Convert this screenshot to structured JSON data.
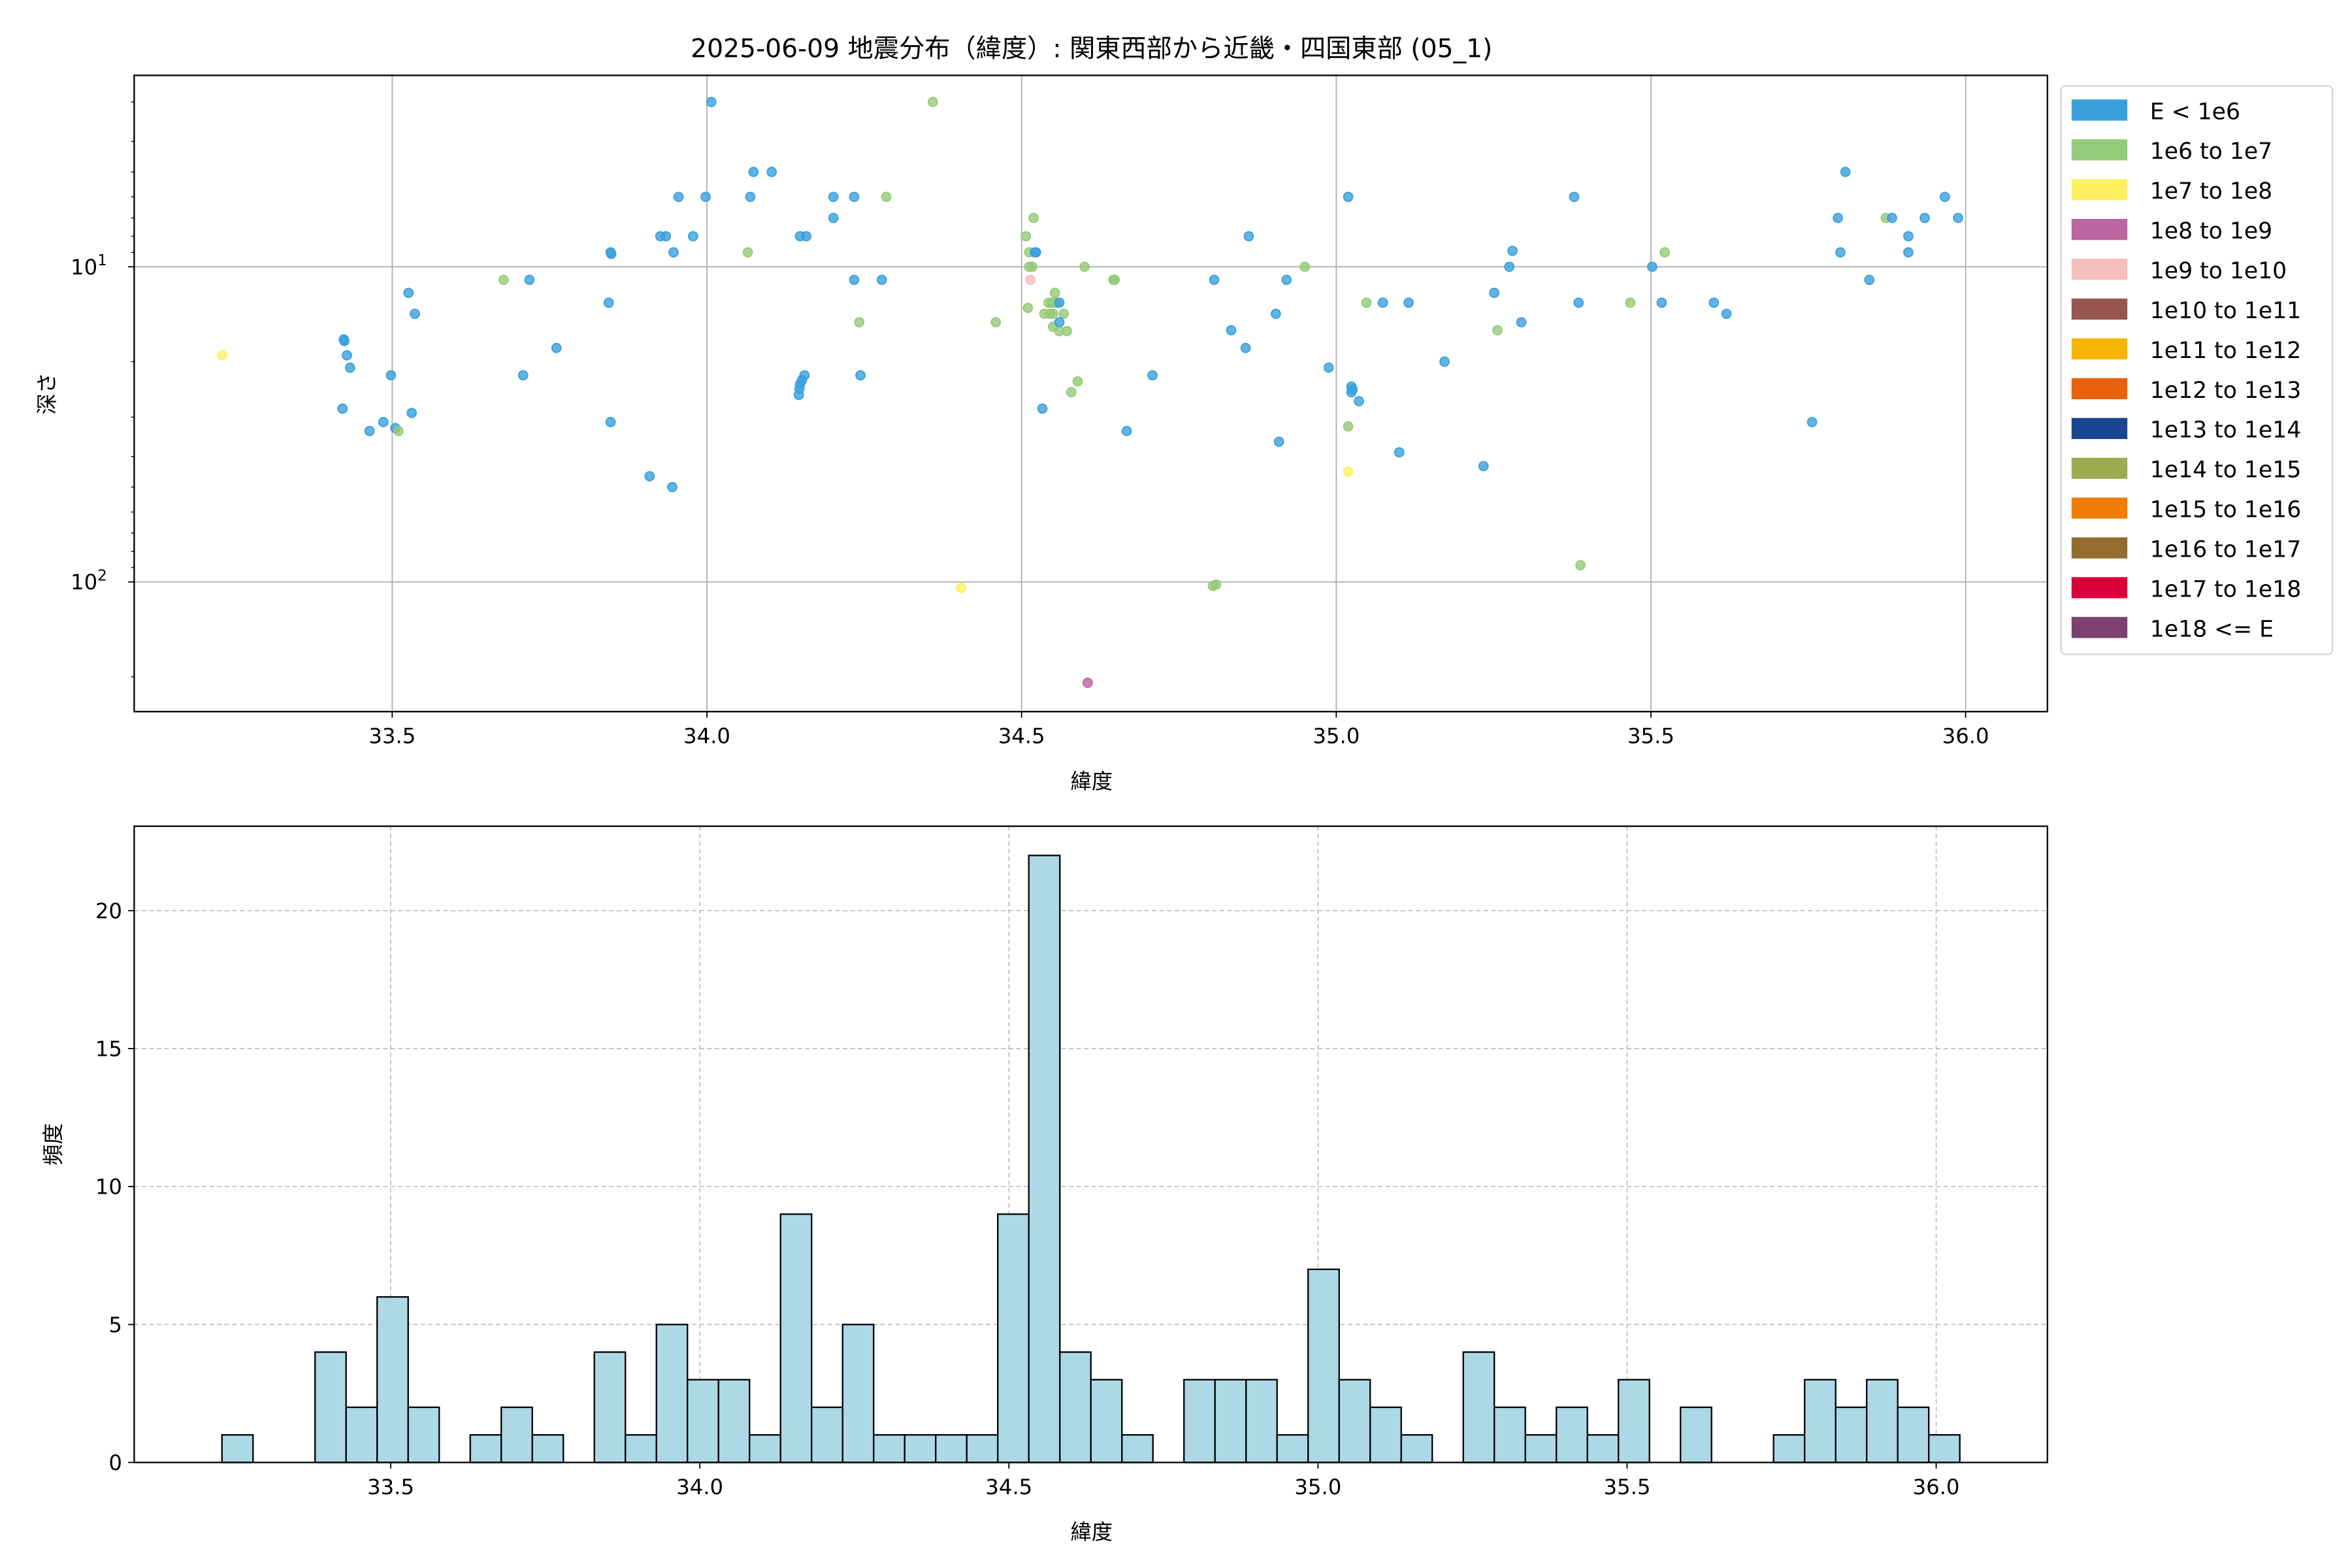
{
  "title": "2025-06-09 地震分布（緯度）: 関東西部から近畿・四国東部 (05_1)",
  "chart_data": [
    {
      "type": "scatter",
      "xlabel": "緯度",
      "ylabel": "深さ",
      "xlim": [
        33.09,
        36.13
      ],
      "ylim": [
        258,
        2.47
      ],
      "yscale": "log",
      "y_inverted": true,
      "grid": true,
      "x_ticks": [
        "33.5",
        "34.0",
        "34.5",
        "35.0",
        "35.5",
        "36.0"
      ],
      "x_tick_values": [
        33.5,
        34.0,
        34.5,
        35.0,
        35.5,
        36.0
      ],
      "y_ticks": [
        {
          "base": "10",
          "exp": "1",
          "value": 10
        },
        {
          "base": "10",
          "exp": "2",
          "value": 100
        }
      ],
      "legend_placement": "outside-right",
      "legend": [
        {
          "label": "E < 1e6",
          "color": "#3aa0dc"
        },
        {
          "label": "1e6 to 1e7",
          "color": "#93cb78"
        },
        {
          "label": "1e7 to 1e8",
          "color": "#fef160"
        },
        {
          "label": "1e8 to 1e9",
          "color": "#ba64a0"
        },
        {
          "label": "1e9 to 1e10",
          "color": "#f5c0bc"
        },
        {
          "label": "1e10 to 1e11",
          "color": "#975550"
        },
        {
          "label": "1e11 to 1e12",
          "color": "#f6b500"
        },
        {
          "label": "1e12 to 1e13",
          "color": "#e9610c"
        },
        {
          "label": "1e13 to 1e14",
          "color": "#1a4690"
        },
        {
          "label": "1e14 to 1e15",
          "color": "#9bad4f"
        },
        {
          "label": "1e15 to 1e16",
          "color": "#ef7c06"
        },
        {
          "label": "1e16 to 1e17",
          "color": "#946c2d"
        },
        {
          "label": "1e17 to 1e18",
          "color": "#d9003a"
        },
        {
          "label": "1e18 <= E",
          "color": "#7b406f"
        }
      ],
      "points": [
        {
          "lat": 33.23,
          "depth": 19.1,
          "cls": 2
        },
        {
          "lat": 33.423,
          "depth": 17.0,
          "cls": 0
        },
        {
          "lat": 33.424,
          "depth": 17.2,
          "cls": 0
        },
        {
          "lat": 33.428,
          "depth": 19.1,
          "cls": 0
        },
        {
          "lat": 33.433,
          "depth": 20.9,
          "cls": 0
        },
        {
          "lat": 33.498,
          "depth": 22.1,
          "cls": 0
        },
        {
          "lat": 33.421,
          "depth": 28.2,
          "cls": 0
        },
        {
          "lat": 33.464,
          "depth": 33.2,
          "cls": 0
        },
        {
          "lat": 33.486,
          "depth": 31.1,
          "cls": 0
        },
        {
          "lat": 33.505,
          "depth": 32.5,
          "cls": 0
        },
        {
          "lat": 33.51,
          "depth": 33.2,
          "cls": 1
        },
        {
          "lat": 33.531,
          "depth": 29.1,
          "cls": 0
        },
        {
          "lat": 33.526,
          "depth": 12.1,
          "cls": 0
        },
        {
          "lat": 33.536,
          "depth": 14.1,
          "cls": 0
        },
        {
          "lat": 33.677,
          "depth": 11.0,
          "cls": 1
        },
        {
          "lat": 33.718,
          "depth": 11.0,
          "cls": 0
        },
        {
          "lat": 33.708,
          "depth": 22.1,
          "cls": 0
        },
        {
          "lat": 33.761,
          "depth": 18.1,
          "cls": 0
        },
        {
          "lat": 33.847,
          "depth": 9.0,
          "cls": 0
        },
        {
          "lat": 33.848,
          "depth": 9.1,
          "cls": 0
        },
        {
          "lat": 33.844,
          "depth": 13.0,
          "cls": 0
        },
        {
          "lat": 33.847,
          "depth": 31.1,
          "cls": 0
        },
        {
          "lat": 33.909,
          "depth": 46.2,
          "cls": 0
        },
        {
          "lat": 33.945,
          "depth": 50.0,
          "cls": 0
        },
        {
          "lat": 33.926,
          "depth": 8.0,
          "cls": 0
        },
        {
          "lat": 33.935,
          "depth": 8.0,
          "cls": 0
        },
        {
          "lat": 33.947,
          "depth": 9.0,
          "cls": 0
        },
        {
          "lat": 33.955,
          "depth": 6.0,
          "cls": 0
        },
        {
          "lat": 33.978,
          "depth": 8.0,
          "cls": 0
        },
        {
          "lat": 33.998,
          "depth": 6.0,
          "cls": 0
        },
        {
          "lat": 34.007,
          "depth": 3.0,
          "cls": 0
        },
        {
          "lat": 34.065,
          "depth": 9.0,
          "cls": 1
        },
        {
          "lat": 34.069,
          "depth": 6.0,
          "cls": 0
        },
        {
          "lat": 34.074,
          "depth": 5.0,
          "cls": 0
        },
        {
          "lat": 34.103,
          "depth": 5.0,
          "cls": 0
        },
        {
          "lat": 34.148,
          "depth": 8.0,
          "cls": 0
        },
        {
          "lat": 34.158,
          "depth": 8.0,
          "cls": 0
        },
        {
          "lat": 34.146,
          "depth": 25.5,
          "cls": 0
        },
        {
          "lat": 34.147,
          "depth": 24.4,
          "cls": 0
        },
        {
          "lat": 34.148,
          "depth": 23.6,
          "cls": 0
        },
        {
          "lat": 34.151,
          "depth": 22.9,
          "cls": 0
        },
        {
          "lat": 34.155,
          "depth": 22.1,
          "cls": 0
        },
        {
          "lat": 34.201,
          "depth": 6.0,
          "cls": 0
        },
        {
          "lat": 34.201,
          "depth": 7.0,
          "cls": 0
        },
        {
          "lat": 34.234,
          "depth": 6.0,
          "cls": 0
        },
        {
          "lat": 34.285,
          "depth": 6.0,
          "cls": 1
        },
        {
          "lat": 34.234,
          "depth": 11.0,
          "cls": 0
        },
        {
          "lat": 34.278,
          "depth": 11.0,
          "cls": 0
        },
        {
          "lat": 34.242,
          "depth": 15.0,
          "cls": 1
        },
        {
          "lat": 34.244,
          "depth": 22.1,
          "cls": 0
        },
        {
          "lat": 34.359,
          "depth": 3.0,
          "cls": 1
        },
        {
          "lat": 34.459,
          "depth": 15.0,
          "cls": 1
        },
        {
          "lat": 34.404,
          "depth": 104.5,
          "cls": 2
        },
        {
          "lat": 34.519,
          "depth": 7.0,
          "cls": 1
        },
        {
          "lat": 34.507,
          "depth": 8.0,
          "cls": 1
        },
        {
          "lat": 34.512,
          "depth": 9.0,
          "cls": 1
        },
        {
          "lat": 34.512,
          "depth": 10.0,
          "cls": 1
        },
        {
          "lat": 34.517,
          "depth": 10.0,
          "cls": 1
        },
        {
          "lat": 34.521,
          "depth": 9.0,
          "cls": 0
        },
        {
          "lat": 34.523,
          "depth": 9.0,
          "cls": 0
        },
        {
          "lat": 34.6,
          "depth": 10.0,
          "cls": 1
        },
        {
          "lat": 34.553,
          "depth": 12.1,
          "cls": 1
        },
        {
          "lat": 34.51,
          "depth": 13.5,
          "cls": 1
        },
        {
          "lat": 34.543,
          "depth": 13.0,
          "cls": 1
        },
        {
          "lat": 34.548,
          "depth": 13.0,
          "cls": 1
        },
        {
          "lat": 34.555,
          "depth": 13.0,
          "cls": 1
        },
        {
          "lat": 34.536,
          "depth": 14.1,
          "cls": 1
        },
        {
          "lat": 34.545,
          "depth": 14.1,
          "cls": 1
        },
        {
          "lat": 34.567,
          "depth": 14.1,
          "cls": 1
        },
        {
          "lat": 34.55,
          "depth": 14.1,
          "cls": 1
        },
        {
          "lat": 34.55,
          "depth": 15.5,
          "cls": 1
        },
        {
          "lat": 34.56,
          "depth": 16.0,
          "cls": 1
        },
        {
          "lat": 34.572,
          "depth": 16.0,
          "cls": 1
        },
        {
          "lat": 34.589,
          "depth": 23.1,
          "cls": 1
        },
        {
          "lat": 34.579,
          "depth": 25.0,
          "cls": 1
        },
        {
          "lat": 34.646,
          "depth": 11.0,
          "cls": 1
        },
        {
          "lat": 34.648,
          "depth": 11.0,
          "cls": 1
        },
        {
          "lat": 34.56,
          "depth": 13.0,
          "cls": 0
        },
        {
          "lat": 34.56,
          "depth": 15.0,
          "cls": 0
        },
        {
          "lat": 34.533,
          "depth": 28.2,
          "cls": 0
        },
        {
          "lat": 34.667,
          "depth": 33.2,
          "cls": 0
        },
        {
          "lat": 34.708,
          "depth": 22.1,
          "cls": 0
        },
        {
          "lat": 34.514,
          "depth": 11.0,
          "cls": 4
        },
        {
          "lat": 34.605,
          "depth": 209,
          "cls": 3
        },
        {
          "lat": 34.806,
          "depth": 11.0,
          "cls": 0
        },
        {
          "lat": 34.861,
          "depth": 8.0,
          "cls": 0
        },
        {
          "lat": 34.921,
          "depth": 11.0,
          "cls": 0
        },
        {
          "lat": 34.904,
          "depth": 14.1,
          "cls": 0
        },
        {
          "lat": 34.833,
          "depth": 15.9,
          "cls": 0
        },
        {
          "lat": 34.856,
          "depth": 18.1,
          "cls": 0
        },
        {
          "lat": 34.909,
          "depth": 35.9,
          "cls": 0
        },
        {
          "lat": 34.95,
          "depth": 10.0,
          "cls": 1
        },
        {
          "lat": 34.988,
          "depth": 20.9,
          "cls": 0
        },
        {
          "lat": 35.019,
          "depth": 6.0,
          "cls": 0
        },
        {
          "lat": 35.024,
          "depth": 24.0,
          "cls": 0
        },
        {
          "lat": 35.024,
          "depth": 25.0,
          "cls": 0
        },
        {
          "lat": 35.026,
          "depth": 24.5,
          "cls": 0
        },
        {
          "lat": 35.036,
          "depth": 26.7,
          "cls": 0
        },
        {
          "lat": 35.019,
          "depth": 32.1,
          "cls": 1
        },
        {
          "lat": 35.019,
          "depth": 44.7,
          "cls": 2
        },
        {
          "lat": 35.048,
          "depth": 13.0,
          "cls": 1
        },
        {
          "lat": 35.074,
          "depth": 13.0,
          "cls": 0
        },
        {
          "lat": 35.115,
          "depth": 13.0,
          "cls": 0
        },
        {
          "lat": 35.1,
          "depth": 38.8,
          "cls": 0
        },
        {
          "lat": 35.172,
          "depth": 20.0,
          "cls": 0
        },
        {
          "lat": 35.234,
          "depth": 42.9,
          "cls": 0
        },
        {
          "lat": 35.251,
          "depth": 12.1,
          "cls": 0
        },
        {
          "lat": 35.256,
          "depth": 15.9,
          "cls": 1
        },
        {
          "lat": 35.275,
          "depth": 10.0,
          "cls": 0
        },
        {
          "lat": 35.28,
          "depth": 8.9,
          "cls": 0
        },
        {
          "lat": 35.294,
          "depth": 15.0,
          "cls": 0
        },
        {
          "lat": 35.378,
          "depth": 6.0,
          "cls": 0
        },
        {
          "lat": 35.385,
          "depth": 13.0,
          "cls": 0
        },
        {
          "lat": 35.388,
          "depth": 88.5,
          "cls": 1
        },
        {
          "lat": 34.804,
          "depth": 103,
          "cls": 1
        },
        {
          "lat": 34.809,
          "depth": 102,
          "cls": 1
        },
        {
          "lat": 35.467,
          "depth": 13.0,
          "cls": 1
        },
        {
          "lat": 35.502,
          "depth": 10.0,
          "cls": 0
        },
        {
          "lat": 35.517,
          "depth": 13.0,
          "cls": 0
        },
        {
          "lat": 35.522,
          "depth": 9.0,
          "cls": 1
        },
        {
          "lat": 35.6,
          "depth": 13.0,
          "cls": 0
        },
        {
          "lat": 35.62,
          "depth": 14.1,
          "cls": 0
        },
        {
          "lat": 35.756,
          "depth": 31.1,
          "cls": 0
        },
        {
          "lat": 35.797,
          "depth": 7.0,
          "cls": 0
        },
        {
          "lat": 35.809,
          "depth": 5.0,
          "cls": 0
        },
        {
          "lat": 35.801,
          "depth": 9.0,
          "cls": 0
        },
        {
          "lat": 35.847,
          "depth": 11.0,
          "cls": 0
        },
        {
          "lat": 35.873,
          "depth": 7.0,
          "cls": 1
        },
        {
          "lat": 35.883,
          "depth": 7.0,
          "cls": 0
        },
        {
          "lat": 35.909,
          "depth": 8.0,
          "cls": 0
        },
        {
          "lat": 35.909,
          "depth": 9.0,
          "cls": 0
        },
        {
          "lat": 35.935,
          "depth": 7.0,
          "cls": 0
        },
        {
          "lat": 35.967,
          "depth": 6.0,
          "cls": 0
        },
        {
          "lat": 35.988,
          "depth": 7.0,
          "cls": 0
        }
      ]
    },
    {
      "type": "bar",
      "subtype": "histogram",
      "xlabel": "緯度",
      "ylabel": "頻度",
      "xlim": [
        33.085,
        36.18
      ],
      "ylim": [
        0,
        23.06
      ],
      "grid": "dashed",
      "bar_color": "#add8e6",
      "edge_color": "#000000",
      "x_ticks": [
        "33.5",
        "34.0",
        "34.5",
        "35.0",
        "35.5",
        "36.0"
      ],
      "x_tick_values": [
        33.5,
        34.0,
        34.5,
        35.0,
        35.5,
        36.0
      ],
      "y_ticks": [
        "0",
        "5",
        "10",
        "15",
        "20"
      ],
      "y_tick_values": [
        0,
        5,
        10,
        15,
        20
      ],
      "bin_start": 33.227,
      "bin_width": 0.0502,
      "counts": [
        1,
        0,
        0,
        4,
        2,
        6,
        2,
        0,
        1,
        2,
        1,
        0,
        4,
        1,
        5,
        3,
        3,
        1,
        9,
        2,
        5,
        1,
        1,
        1,
        1,
        9,
        22,
        4,
        3,
        1,
        0,
        3,
        3,
        3,
        1,
        7,
        3,
        2,
        1,
        0,
        4,
        2,
        1,
        2,
        1,
        3,
        0,
        2,
        0,
        0,
        1,
        3,
        2,
        3,
        2,
        1
      ]
    }
  ]
}
